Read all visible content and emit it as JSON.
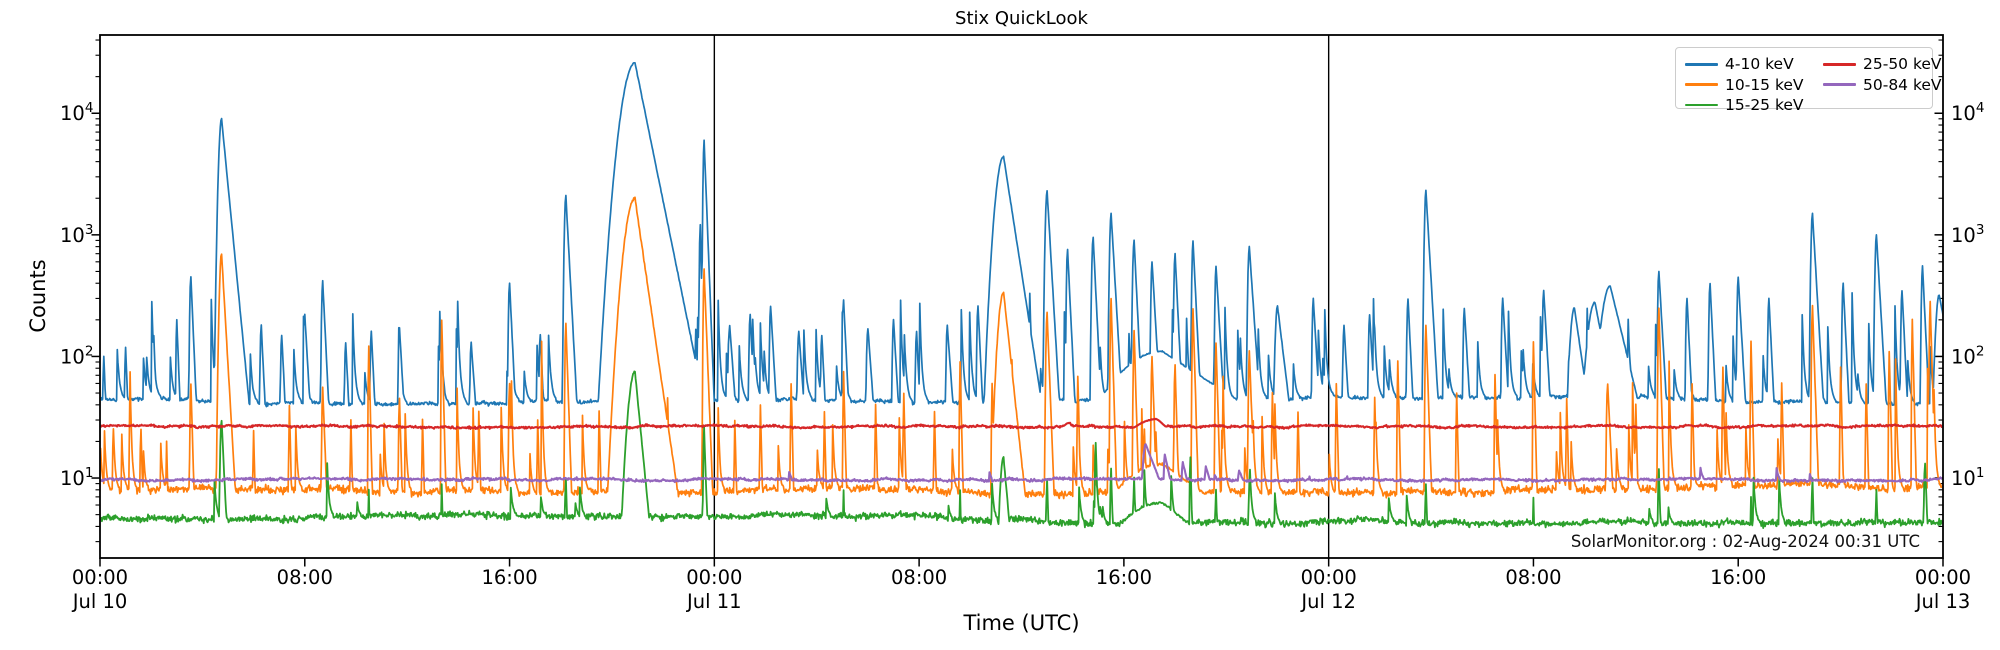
{
  "figure": {
    "title": "Stix QuickLook"
  },
  "chart_data": {
    "type": "line",
    "title": "Stix QuickLook",
    "xlabel": "Time (UTC)",
    "ylabel": "Counts",
    "x_range_hours": [
      0,
      72
    ],
    "x_major_ticks": [
      {
        "t": 0,
        "time": "00:00",
        "date": "Jul 10"
      },
      {
        "t": 8,
        "time": "08:00"
      },
      {
        "t": 16,
        "time": "16:00"
      },
      {
        "t": 24,
        "time": "00:00",
        "date": "Jul 11"
      },
      {
        "t": 32,
        "time": "08:00"
      },
      {
        "t": 40,
        "time": "16:00"
      },
      {
        "t": 48,
        "time": "00:00",
        "date": "Jul 12"
      },
      {
        "t": 56,
        "time": "08:00"
      },
      {
        "t": 64,
        "time": "16:00"
      },
      {
        "t": 72,
        "time": "00:00",
        "date": "Jul 13"
      }
    ],
    "y_scale": "log",
    "ylim": [
      2.2,
      44000
    ],
    "y_major_ticks": [
      {
        "value": 10,
        "mantissa": "10",
        "exponent": "1"
      },
      {
        "value": 100,
        "mantissa": "10",
        "exponent": "2"
      },
      {
        "value": 1000,
        "mantissa": "10",
        "exponent": "3"
      },
      {
        "value": 10000,
        "mantissa": "10",
        "exponent": "4"
      }
    ],
    "day_boundary_lines_hours": [
      24,
      48
    ],
    "grid": false,
    "legend_position": "upper right",
    "legend_columns": 2,
    "annotation": "SolarMonitor.org : 02-Aug-2024 00:31 UTC",
    "axis_color": "#000000",
    "series": [
      {
        "name": "4-10 keV",
        "color": "#1f77b4",
        "width": 1.7,
        "seed": 11,
        "baseline": 45,
        "noise_decades": 0.022,
        "wobble_decades": 0.05,
        "micro_spikes": {
          "prob": 0.045,
          "max_decades": 0.95,
          "decay": 0.76
        },
        "peaks": [
          [
            0.15,
            100,
            0.03,
            0.08
          ],
          [
            1.0,
            120,
            0.03,
            0.08
          ],
          [
            2.1,
            150,
            0.03,
            0.08
          ],
          [
            3.0,
            200,
            0.03,
            0.08
          ],
          [
            3.55,
            450,
            0.04,
            0.09
          ],
          [
            4.75,
            9000,
            0.09,
            0.2
          ],
          [
            6.3,
            180,
            0.04,
            0.1
          ],
          [
            7.1,
            150,
            0.04,
            0.1
          ],
          [
            8.0,
            220,
            0.04,
            0.12
          ],
          [
            8.7,
            420,
            0.04,
            0.1
          ],
          [
            9.6,
            130,
            0.04,
            0.1
          ],
          [
            10.6,
            160,
            0.04,
            0.1
          ],
          [
            11.7,
            170,
            0.04,
            0.12
          ],
          [
            13.3,
            120,
            0.04,
            0.2
          ],
          [
            14.5,
            130,
            0.04,
            0.15
          ],
          [
            16.0,
            400,
            0.04,
            0.1
          ],
          [
            17.2,
            150,
            0.04,
            0.1
          ],
          [
            18.2,
            2100,
            0.05,
            0.11
          ],
          [
            19.9,
            250,
            0.08,
            0.15
          ],
          [
            20.9,
            26000,
            0.4,
            0.42
          ],
          [
            23.45,
            1200,
            0.03,
            0.05
          ],
          [
            23.6,
            6000,
            0.035,
            0.08
          ],
          [
            24.6,
            180,
            0.05,
            0.15
          ],
          [
            25.4,
            220,
            0.04,
            0.1
          ],
          [
            26.2,
            260,
            0.04,
            0.12
          ],
          [
            27.3,
            160,
            0.05,
            0.15
          ],
          [
            28.2,
            150,
            0.04,
            0.1
          ],
          [
            29.05,
            290,
            0.04,
            0.1
          ],
          [
            30.0,
            170,
            0.05,
            0.15
          ],
          [
            31.0,
            200,
            0.04,
            0.12
          ],
          [
            31.9,
            160,
            0.04,
            0.1
          ],
          [
            33.1,
            180,
            0.04,
            0.15
          ],
          [
            34.3,
            260,
            0.04,
            0.1
          ],
          [
            34.85,
            700,
            0.03,
            0.06
          ],
          [
            35.3,
            4400,
            0.25,
            0.32
          ],
          [
            37.0,
            2300,
            0.06,
            0.12
          ],
          [
            37.8,
            750,
            0.04,
            0.1
          ],
          [
            38.8,
            950,
            0.05,
            0.1
          ],
          [
            39.5,
            1500,
            0.05,
            0.12
          ],
          [
            40.4,
            900,
            0.05,
            0.1
          ],
          [
            41.1,
            600,
            0.04,
            0.12
          ],
          [
            41.5,
            110,
            1.8,
            3.2
          ],
          [
            42.0,
            700,
            0.04,
            0.1
          ],
          [
            42.7,
            900,
            0.04,
            0.1
          ],
          [
            43.6,
            550,
            0.04,
            0.12
          ],
          [
            44.9,
            800,
            0.05,
            0.14
          ],
          [
            46.0,
            260,
            0.08,
            0.25
          ],
          [
            47.4,
            300,
            0.04,
            0.12
          ],
          [
            48.6,
            180,
            0.04,
            0.12
          ],
          [
            49.6,
            220,
            0.04,
            0.12
          ],
          [
            51.1,
            300,
            0.04,
            0.1
          ],
          [
            51.8,
            2300,
            0.05,
            0.12
          ],
          [
            53.3,
            250,
            0.04,
            0.12
          ],
          [
            54.8,
            300,
            0.04,
            0.12
          ],
          [
            56.4,
            350,
            0.04,
            0.12
          ],
          [
            57.6,
            250,
            0.15,
            0.3
          ],
          [
            58.4,
            280,
            0.25,
            0.4
          ],
          [
            59.0,
            380,
            0.3,
            0.5
          ],
          [
            60.9,
            500,
            0.04,
            0.12
          ],
          [
            62.0,
            300,
            0.04,
            0.1
          ],
          [
            62.9,
            400,
            0.04,
            0.1
          ],
          [
            64.0,
            450,
            0.04,
            0.12
          ],
          [
            65.2,
            300,
            0.04,
            0.1
          ],
          [
            66.9,
            1500,
            0.05,
            0.12
          ],
          [
            68.1,
            400,
            0.04,
            0.1
          ],
          [
            69.4,
            1000,
            0.05,
            0.12
          ],
          [
            70.4,
            350,
            0.04,
            0.1
          ],
          [
            71.2,
            550,
            0.04,
            0.1
          ],
          [
            71.85,
            320,
            0.12,
            0.4
          ]
        ]
      },
      {
        "name": "10-15 keV",
        "color": "#ff7f0e",
        "width": 1.7,
        "seed": 22,
        "baseline": 8.2,
        "noise_decades": 0.045,
        "wobble_decades": 0.05,
        "micro_spikes": {
          "prob": 0.022,
          "max_decades": 1.25,
          "decay": 0.7
        },
        "peaks": [
          [
            0.5,
            18,
            0.02,
            0.05
          ],
          [
            1.6,
            25,
            0.03,
            0.06
          ],
          [
            2.6,
            20,
            0.02,
            0.05
          ],
          [
            3.55,
            60,
            0.03,
            0.06
          ],
          [
            4.75,
            700,
            0.07,
            0.12
          ],
          [
            6.0,
            25,
            0.02,
            0.05
          ],
          [
            7.4,
            40,
            0.02,
            0.05
          ],
          [
            8.7,
            55,
            0.03,
            0.08
          ],
          [
            9.8,
            30,
            0.02,
            0.05
          ],
          [
            10.5,
            120,
            0.02,
            0.05
          ],
          [
            11.7,
            45,
            0.03,
            0.06
          ],
          [
            12.6,
            30,
            0.02,
            0.05
          ],
          [
            13.35,
            200,
            0.02,
            0.05
          ],
          [
            14.8,
            35,
            0.02,
            0.05
          ],
          [
            16.0,
            60,
            0.03,
            0.06
          ],
          [
            17.1,
            30,
            0.02,
            0.05
          ],
          [
            18.2,
            190,
            0.03,
            0.07
          ],
          [
            19.5,
            35,
            0.02,
            0.05
          ],
          [
            20.9,
            2000,
            0.32,
            0.3
          ],
          [
            23.6,
            520,
            0.03,
            0.08
          ],
          [
            24.8,
            30,
            0.02,
            0.05
          ],
          [
            25.8,
            40,
            0.02,
            0.05
          ],
          [
            27.0,
            60,
            0.02,
            0.05
          ],
          [
            28.3,
            35,
            0.02,
            0.05
          ],
          [
            29.05,
            75,
            0.02,
            0.05
          ],
          [
            30.3,
            40,
            0.02,
            0.05
          ],
          [
            31.4,
            50,
            0.02,
            0.05
          ],
          [
            32.6,
            35,
            0.02,
            0.05
          ],
          [
            33.6,
            90,
            0.02,
            0.05
          ],
          [
            34.85,
            60,
            0.02,
            0.05
          ],
          [
            35.3,
            340,
            0.18,
            0.22
          ],
          [
            37.0,
            230,
            0.04,
            0.08
          ],
          [
            38.2,
            70,
            0.02,
            0.05
          ],
          [
            39.5,
            300,
            0.03,
            0.06
          ],
          [
            40.4,
            160,
            0.03,
            0.06
          ],
          [
            41.1,
            100,
            0.03,
            0.07
          ],
          [
            41.5,
            13,
            1.8,
            3.0
          ],
          [
            42.0,
            85,
            0.03,
            0.06
          ],
          [
            42.7,
            250,
            0.03,
            0.06
          ],
          [
            43.6,
            130,
            0.03,
            0.06
          ],
          [
            44.9,
            110,
            0.03,
            0.08
          ],
          [
            45.8,
            50,
            0.02,
            0.06
          ],
          [
            46.8,
            35,
            0.02,
            0.05
          ],
          [
            48.3,
            60,
            0.02,
            0.05
          ],
          [
            49.8,
            45,
            0.02,
            0.05
          ],
          [
            50.7,
            90,
            0.02,
            0.05
          ],
          [
            51.8,
            180,
            0.03,
            0.07
          ],
          [
            53.0,
            50,
            0.02,
            0.05
          ],
          [
            54.5,
            70,
            0.02,
            0.05
          ],
          [
            56.0,
            130,
            0.02,
            0.05
          ],
          [
            57.3,
            45,
            0.02,
            0.05
          ],
          [
            58.9,
            60,
            0.04,
            0.1
          ],
          [
            60.0,
            40,
            0.02,
            0.05
          ],
          [
            60.9,
            250,
            0.03,
            0.06
          ],
          [
            62.2,
            60,
            0.02,
            0.05
          ],
          [
            63.4,
            80,
            0.02,
            0.05
          ],
          [
            64.5,
            130,
            0.02,
            0.05
          ],
          [
            65.7,
            60,
            0.02,
            0.05
          ],
          [
            66.9,
            260,
            0.03,
            0.07
          ],
          [
            68.0,
            80,
            0.02,
            0.05
          ],
          [
            69.0,
            60,
            0.02,
            0.05
          ],
          [
            69.9,
            110,
            0.02,
            0.05
          ],
          [
            70.8,
            200,
            0.02,
            0.05
          ],
          [
            71.5,
            280,
            0.03,
            0.06
          ]
        ]
      },
      {
        "name": "15-25 keV",
        "color": "#2ca02c",
        "width": 1.8,
        "seed": 33,
        "baseline": 4.6,
        "noise_decades": 0.04,
        "wobble_decades": 0.04,
        "micro_spikes": {
          "prob": 0.01,
          "max_decades": 0.45,
          "decay": 0.72
        },
        "peaks": [
          [
            4.75,
            30,
            0.05,
            0.1
          ],
          [
            10.5,
            8,
            0.02,
            0.05
          ],
          [
            13.35,
            9,
            0.02,
            0.05
          ],
          [
            18.2,
            10,
            0.03,
            0.06
          ],
          [
            20.9,
            75,
            0.22,
            0.2
          ],
          [
            23.6,
            26,
            0.03,
            0.07
          ],
          [
            29.05,
            8,
            0.02,
            0.05
          ],
          [
            33.6,
            8,
            0.02,
            0.05
          ],
          [
            35.3,
            15,
            0.12,
            0.18
          ],
          [
            37.0,
            10,
            0.03,
            0.06
          ],
          [
            38.9,
            20,
            0.03,
            0.06
          ],
          [
            39.5,
            12,
            0.03,
            0.06
          ],
          [
            40.4,
            10,
            0.03,
            0.06
          ],
          [
            41.5,
            6.3,
            1.8,
            2.6
          ],
          [
            42.6,
            15,
            0.03,
            0.05
          ],
          [
            43.6,
            8,
            0.03,
            0.06
          ],
          [
            44.9,
            9,
            0.03,
            0.06
          ],
          [
            51.8,
            9,
            0.03,
            0.06
          ],
          [
            56.0,
            7,
            0.02,
            0.05
          ],
          [
            60.9,
            12,
            0.03,
            0.06
          ],
          [
            64.5,
            7,
            0.02,
            0.05
          ],
          [
            66.9,
            10,
            0.03,
            0.06
          ],
          [
            69.4,
            8,
            0.03,
            0.06
          ],
          [
            71.3,
            13,
            0.04,
            0.08
          ]
        ]
      },
      {
        "name": "25-50 keV",
        "color": "#d62728",
        "width": 2.1,
        "seed": 44,
        "baseline": 26.5,
        "noise_decades": 0.012,
        "wobble_decades": 0.01,
        "micro_spikes": {
          "prob": 0.0,
          "max_decades": 0,
          "decay": 0.7
        },
        "peaks": [
          [
            37.9,
            28.5,
            0.7,
            0.9
          ],
          [
            41.3,
            30.5,
            1.6,
            2.4
          ]
        ]
      },
      {
        "name": "50-84 keV",
        "color": "#9467bd",
        "width": 2.1,
        "seed": 55,
        "baseline": 9.7,
        "noise_decades": 0.014,
        "wobble_decades": 0.01,
        "micro_spikes": {
          "prob": 0.004,
          "max_decades": 0.1,
          "decay": 0.7
        },
        "peaks": [
          [
            40.85,
            19,
            0.12,
            0.8
          ],
          [
            41.6,
            15.5,
            0.05,
            0.45
          ],
          [
            42.3,
            13.5,
            0.05,
            0.5
          ],
          [
            43.2,
            12.5,
            0.05,
            0.6
          ],
          [
            44.5,
            11.5,
            0.06,
            0.9
          ]
        ]
      }
    ]
  }
}
